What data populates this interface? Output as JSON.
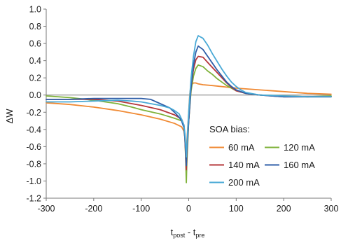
{
  "chart_data": {
    "type": "line",
    "xlabel": {
      "main": "t",
      "sub1": "post",
      "sep": " - t",
      "sub2": "pre"
    },
    "ylabel": "ΔW",
    "xlim": [
      -300,
      300
    ],
    "ylim": [
      -1.2,
      1.0
    ],
    "xticks": [
      -300,
      -200,
      -100,
      0,
      100,
      200,
      300
    ],
    "yticks": [
      1.0,
      0.8,
      0.6,
      0.4,
      0.2,
      0.0,
      -0.2,
      -0.4,
      -0.6,
      -0.8,
      -1.0,
      -1.2
    ],
    "xtick_labels": [
      "-300",
      "-200",
      "-100",
      "0",
      "100",
      "200",
      "300"
    ],
    "ytick_labels": [
      "1.0",
      "0.8",
      "0.6",
      "0.4",
      "0.2",
      "0.0",
      "-0.2",
      "-0.4",
      "-0.6",
      "-0.8",
      "-1.0",
      "-1.2"
    ],
    "grid": false,
    "legend": {
      "title": "SOA bias:",
      "placement": "lower-right"
    },
    "series": [
      {
        "name": "60 mA",
        "color": "#F08A34",
        "x": [
          -300,
          -250,
          -200,
          -150,
          -100,
          -60,
          -30,
          -15,
          -10,
          -8,
          -6,
          -5,
          -4,
          0,
          2,
          4,
          6,
          10,
          15,
          20,
          30,
          50,
          100,
          150,
          200,
          250,
          300
        ],
        "y": [
          -0.09,
          -0.11,
          -0.14,
          -0.18,
          -0.23,
          -0.28,
          -0.33,
          -0.37,
          -0.42,
          -0.5,
          -0.62,
          -0.68,
          -0.55,
          -0.2,
          0.0,
          0.08,
          0.12,
          0.14,
          0.14,
          0.13,
          0.12,
          0.11,
          0.08,
          0.06,
          0.04,
          0.02,
          0.01
        ]
      },
      {
        "name": "120 mA",
        "color": "#7FB23A",
        "x": [
          -300,
          -250,
          -200,
          -150,
          -120,
          -100,
          -60,
          -30,
          -15,
          -10,
          -8,
          -6,
          -5,
          -4,
          0,
          5,
          10,
          15,
          20,
          30,
          40,
          50,
          60,
          70,
          80,
          90,
          100,
          120,
          150,
          200,
          250,
          300
        ],
        "y": [
          -0.01,
          -0.03,
          -0.06,
          -0.1,
          -0.14,
          -0.17,
          -0.22,
          -0.27,
          -0.3,
          -0.36,
          -0.5,
          -0.8,
          -1.02,
          -0.8,
          -0.3,
          0.05,
          0.22,
          0.31,
          0.35,
          0.33,
          0.28,
          0.24,
          0.19,
          0.15,
          0.11,
          0.08,
          0.05,
          0.02,
          0.0,
          -0.01,
          -0.02,
          -0.01
        ]
      },
      {
        "name": "140 mA",
        "color": "#B5373B",
        "x": [
          -300,
          -250,
          -200,
          -150,
          -120,
          -100,
          -60,
          -30,
          -15,
          -10,
          -8,
          -6,
          -5,
          -4,
          0,
          5,
          10,
          15,
          20,
          30,
          40,
          50,
          60,
          70,
          80,
          90,
          100,
          120,
          150,
          200,
          250,
          300
        ],
        "y": [
          -0.05,
          -0.05,
          -0.05,
          -0.07,
          -0.1,
          -0.12,
          -0.17,
          -0.23,
          -0.28,
          -0.35,
          -0.5,
          -0.75,
          -0.87,
          -0.7,
          -0.3,
          0.1,
          0.3,
          0.41,
          0.45,
          0.44,
          0.38,
          0.32,
          0.26,
          0.2,
          0.14,
          0.09,
          0.05,
          0.02,
          0.0,
          -0.02,
          -0.02,
          -0.02
        ]
      },
      {
        "name": "160 mA",
        "color": "#2F5EA8",
        "x": [
          -300,
          -250,
          -200,
          -150,
          -100,
          -80,
          -60,
          -40,
          -30,
          -20,
          -15,
          -10,
          -8,
          -6,
          -5,
          -4,
          0,
          5,
          10,
          15,
          20,
          30,
          40,
          50,
          60,
          70,
          80,
          90,
          100,
          120,
          150,
          200,
          250,
          300
        ],
        "y": [
          -0.05,
          -0.05,
          -0.04,
          -0.04,
          -0.04,
          -0.05,
          -0.1,
          -0.15,
          -0.2,
          -0.26,
          -0.3,
          -0.38,
          -0.5,
          -0.7,
          -0.82,
          -0.65,
          -0.3,
          0.1,
          0.35,
          0.5,
          0.57,
          0.53,
          0.45,
          0.37,
          0.29,
          0.22,
          0.15,
          0.1,
          0.06,
          0.02,
          0.0,
          -0.02,
          -0.02,
          -0.02
        ]
      },
      {
        "name": "200 mA",
        "color": "#49A9D6",
        "x": [
          -300,
          -250,
          -200,
          -150,
          -120,
          -100,
          -80,
          -60,
          -40,
          -30,
          -20,
          -15,
          -10,
          -8,
          -6,
          -5,
          -4,
          0,
          5,
          10,
          15,
          20,
          30,
          40,
          50,
          60,
          70,
          80,
          90,
          100,
          110,
          120,
          150,
          200,
          250,
          300
        ],
        "y": [
          -0.08,
          -0.08,
          -0.07,
          -0.06,
          -0.07,
          -0.08,
          -0.1,
          -0.12,
          -0.15,
          -0.18,
          -0.22,
          -0.28,
          -0.35,
          -0.45,
          -0.6,
          -0.72,
          -0.6,
          -0.2,
          0.2,
          0.45,
          0.62,
          0.69,
          0.66,
          0.58,
          0.48,
          0.39,
          0.3,
          0.22,
          0.15,
          0.1,
          0.06,
          0.03,
          0.0,
          -0.01,
          -0.02,
          -0.02
        ]
      }
    ]
  }
}
